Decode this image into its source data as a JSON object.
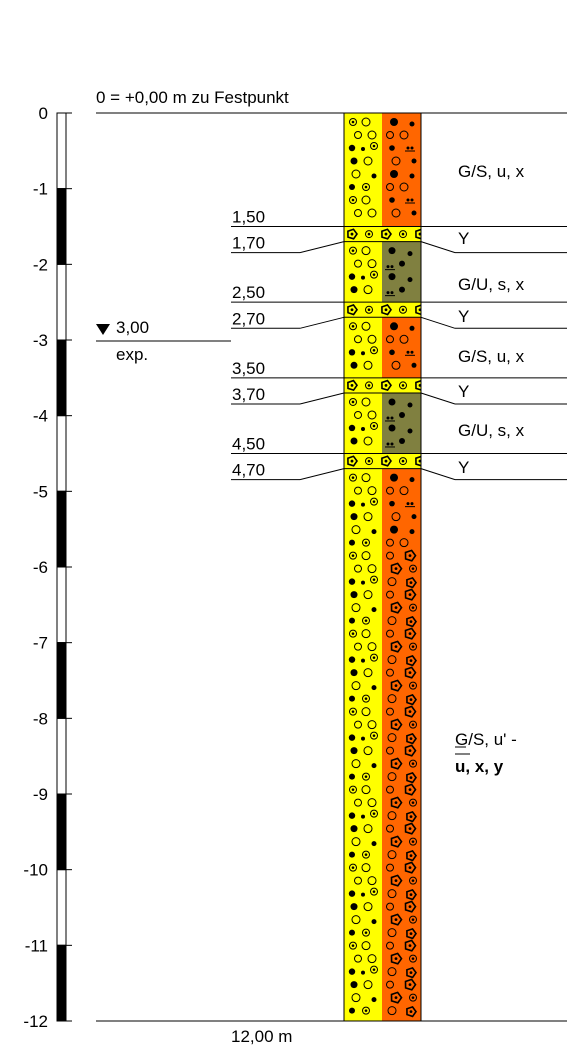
{
  "header": {
    "reference": "0 = +0,00 m zu Festpunkt"
  },
  "scale": {
    "ticks": [
      "0",
      "-1",
      "-2",
      "-3",
      "-4",
      "-5",
      "-6",
      "-7",
      "-8",
      "-9",
      "-10",
      "-11",
      "-12"
    ]
  },
  "groundwater": {
    "depth": "3,00",
    "note": "exp."
  },
  "total_depth": "12,00 m",
  "boundaries": [
    {
      "depth": 1.5,
      "label": "1,50"
    },
    {
      "depth": 1.7,
      "label": "1,70"
    },
    {
      "depth": 2.5,
      "label": "2,50"
    },
    {
      "depth": 2.7,
      "label": "2,70"
    },
    {
      "depth": 3.5,
      "label": "3,50"
    },
    {
      "depth": 3.7,
      "label": "3,70"
    },
    {
      "depth": 4.5,
      "label": "4,50"
    },
    {
      "depth": 4.7,
      "label": "4,70"
    }
  ],
  "layers": [
    {
      "top": 0.0,
      "bottom": 1.5,
      "soil": "G/S, u, x",
      "left_color": "#FFFF00",
      "right_color": "#FF6600"
    },
    {
      "top": 1.5,
      "bottom": 1.7,
      "soil": "Y",
      "left_color": "#FFFF00",
      "right_color": "#FFFF00"
    },
    {
      "top": 1.7,
      "bottom": 2.5,
      "soil": "G/U, s, x",
      "left_color": "#FFFF00",
      "right_color": "#808040"
    },
    {
      "top": 2.5,
      "bottom": 2.7,
      "soil": "Y",
      "left_color": "#FFFF00",
      "right_color": "#FFFF00"
    },
    {
      "top": 2.7,
      "bottom": 3.5,
      "soil": "G/S, u, x",
      "left_color": "#FFFF00",
      "right_color": "#FF6600"
    },
    {
      "top": 3.5,
      "bottom": 3.7,
      "soil": "Y",
      "left_color": "#FFFF00",
      "right_color": "#FFFF00"
    },
    {
      "top": 3.7,
      "bottom": 4.5,
      "soil": "G/U, s, x",
      "left_color": "#FFFF00",
      "right_color": "#808040"
    },
    {
      "top": 4.5,
      "bottom": 4.7,
      "soil": "Y",
      "left_color": "#FFFF00",
      "right_color": "#FFFF00"
    },
    {
      "top": 4.7,
      "bottom": 12.0,
      "soil_line1": "G/S, u' -",
      "soil_line2": "u, x,  y",
      "left_color": "#FFFF00",
      "right_color": "#FF6600"
    }
  ]
}
